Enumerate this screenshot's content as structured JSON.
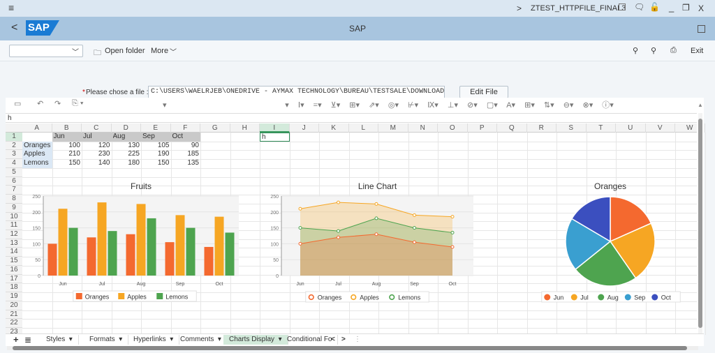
{
  "titlebar": {
    "menu_icon": "hamburger-icon",
    "chevron": ">",
    "transaction": "ZTEST_HTTPFILE_FINAL3",
    "min": "_",
    "restore": "❐",
    "close": "X"
  },
  "header": {
    "back": "<",
    "logo": "SAP",
    "title": "SAP"
  },
  "toolbar": {
    "dropdown_value": "",
    "open_folder": "Open folder",
    "more": "More",
    "exit": "Exit"
  },
  "file": {
    "label": "Please chose a file :",
    "required": "*",
    "value": "C:\\USERS\\WAELRJEB\\ONEDRIVE - AYMAX TECHNOLOGY\\BUREAU\\TESTSALE\\DOWNLOADE..",
    "edit": "Edit File"
  },
  "formula": "h",
  "columns": [
    "A",
    "B",
    "C",
    "D",
    "E",
    "F",
    "G",
    "H",
    "I",
    "J",
    "K",
    "L",
    "M",
    "N",
    "O",
    "P",
    "Q",
    "R",
    "S",
    "T",
    "U",
    "V",
    "W"
  ],
  "row_count": 23,
  "selected_cell": {
    "col": "I",
    "row": 1,
    "value": "h"
  },
  "table": {
    "header": [
      "Jun",
      "Jul",
      "Aug",
      "Sep",
      "Oct"
    ],
    "rows": [
      {
        "label": "Oranges",
        "values": [
          100,
          120,
          130,
          105,
          90
        ]
      },
      {
        "label": "Apples",
        "values": [
          210,
          230,
          225,
          190,
          185
        ]
      },
      {
        "label": "Lemons",
        "values": [
          150,
          140,
          180,
          150,
          135
        ]
      }
    ]
  },
  "chart_data": [
    {
      "type": "bar",
      "title": "Fruits",
      "categories": [
        "Jun",
        "Jul",
        "Aug",
        "Sep",
        "Oct"
      ],
      "ylim": [
        0,
        250
      ],
      "yticks": [
        0,
        50,
        100,
        150,
        200,
        250
      ],
      "legend": "bottom",
      "series": [
        {
          "name": "Oranges",
          "color": "#f4692f",
          "values": [
            100,
            120,
            130,
            105,
            90
          ]
        },
        {
          "name": "Apples",
          "color": "#f6a623",
          "values": [
            210,
            230,
            225,
            190,
            185
          ]
        },
        {
          "name": "Lemons",
          "color": "#4ea44f",
          "values": [
            150,
            140,
            180,
            150,
            135
          ]
        }
      ]
    },
    {
      "type": "area",
      "title": "Line Chart",
      "categories": [
        "Jun",
        "Jul",
        "Aug",
        "Sep",
        "Oct"
      ],
      "ylim": [
        0,
        250
      ],
      "yticks": [
        0,
        50,
        100,
        150,
        200,
        250
      ],
      "legend": "bottom",
      "series": [
        {
          "name": "Oranges",
          "color": "#f4692f",
          "values": [
            100,
            120,
            130,
            105,
            90
          ]
        },
        {
          "name": "Apples",
          "color": "#f6a623",
          "values": [
            210,
            230,
            225,
            190,
            185
          ]
        },
        {
          "name": "Lemons",
          "color": "#4ea44f",
          "values": [
            150,
            140,
            180,
            150,
            135
          ]
        }
      ]
    },
    {
      "type": "pie",
      "title": "Oranges",
      "categories": [
        "Jun",
        "Jul",
        "Aug",
        "Sep",
        "Oct"
      ],
      "values": [
        100,
        120,
        130,
        105,
        90
      ],
      "colors": [
        "#f4692f",
        "#f6a623",
        "#4ea44f",
        "#3a9fd0",
        "#3b4fbf"
      ],
      "legend": "bottom"
    }
  ],
  "sheet_tabs": [
    "Styles",
    "Formats",
    "Hyperlinks",
    "Comments",
    "Charts Display",
    "Conditional Fo"
  ],
  "active_tab": "Charts Display"
}
